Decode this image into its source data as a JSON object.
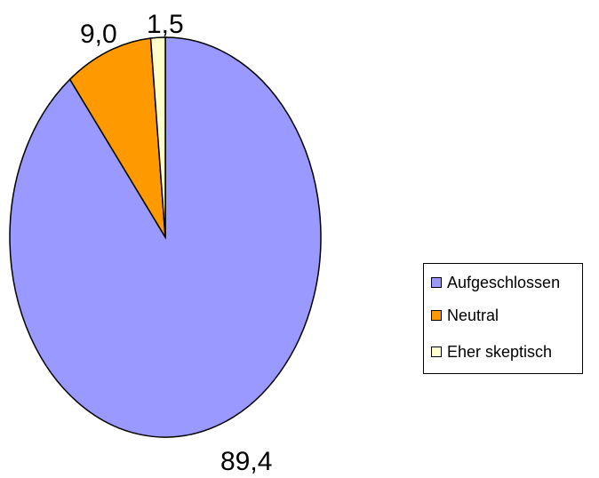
{
  "chart_data": {
    "type": "pie",
    "categories": [
      "Aufgeschlossen",
      "Neutral",
      "Eher skeptisch"
    ],
    "values": [
      89.4,
      9.0,
      1.5
    ],
    "value_labels": [
      "89,4",
      "9,0",
      "1,5"
    ],
    "colors": [
      "#9999FF",
      "#FF9900",
      "#FFFFCC"
    ],
    "legend_position": "right",
    "start_angle_clock": "12 o'clock",
    "direction": "clockwise"
  }
}
